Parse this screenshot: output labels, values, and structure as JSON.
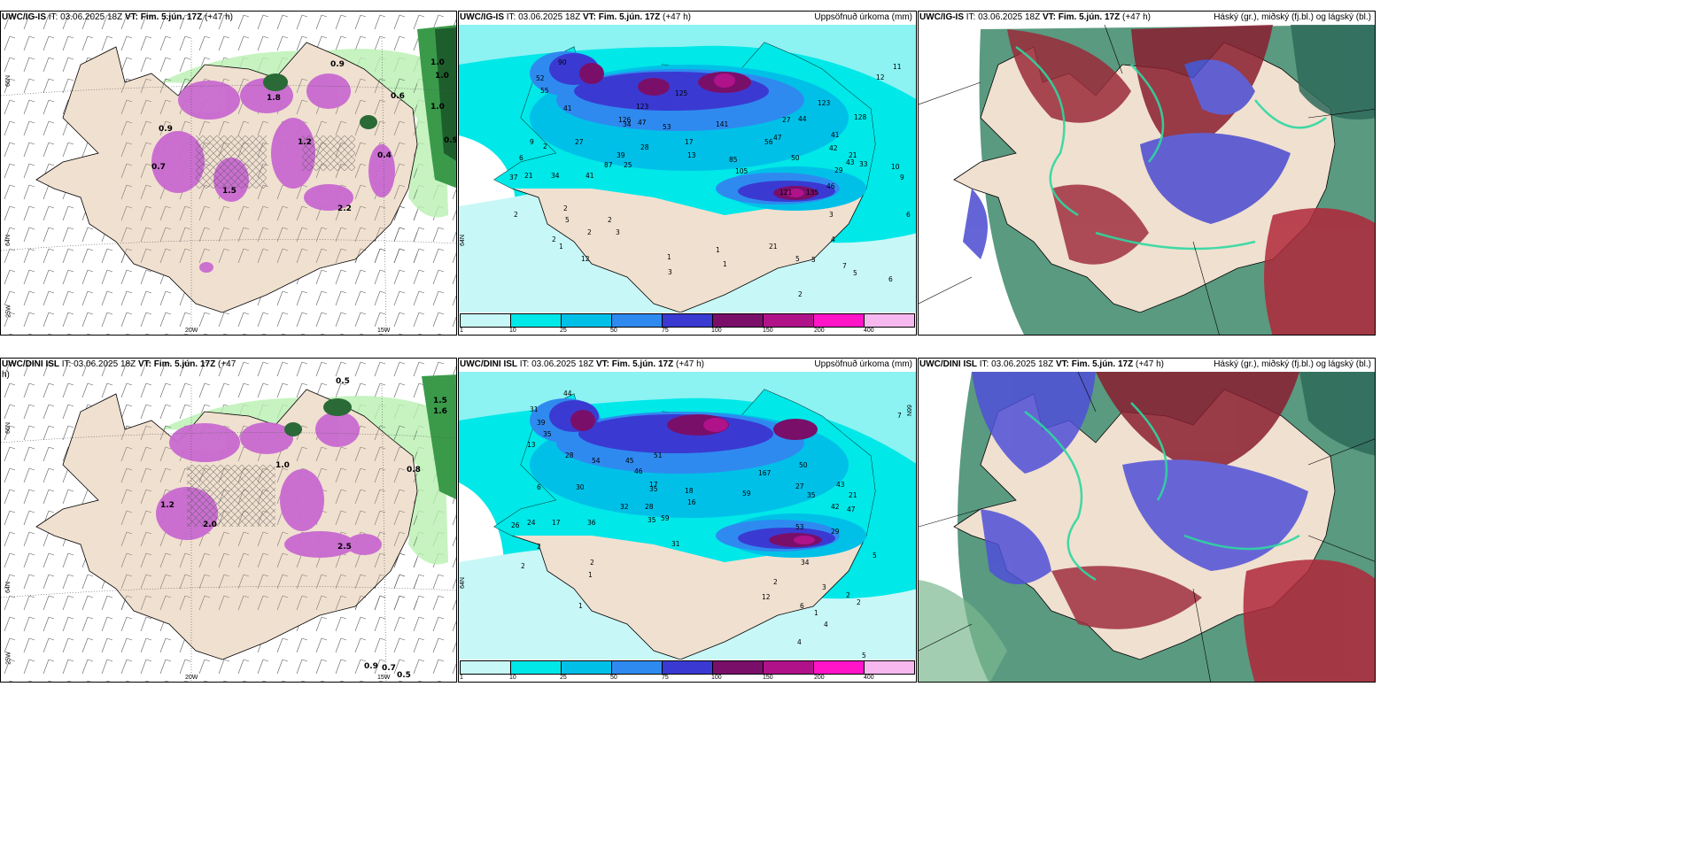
{
  "panels": {
    "p1": {
      "model": "UWC/IG-IS",
      "it_label": "IT:",
      "it": "03.06.2025 18Z",
      "vt_label": "VT:",
      "vt": "Fim. 5.jún. 17Z",
      "lead": "(+47 h)",
      "right": "",
      "lat1": "66N",
      "lat2": "64N",
      "lat3": "25W",
      "lon1": "20W",
      "lon2": "15W"
    },
    "p2": {
      "model": "UWC/IG-IS",
      "it_label": "IT:",
      "it": "03.06.2025 18Z",
      "vt_label": "VT:",
      "vt": "Fim. 5.jún. 17Z",
      "lead": "(+47 h)",
      "right": "Uppsöfnuð úrkoma (mm)",
      "lat2": "64N"
    },
    "p3": {
      "model": "UWC/IG-IS",
      "it_label": "IT:",
      "it": "03.06.2025 18Z",
      "vt_label": "VT:",
      "vt": "Fim. 5.jún. 17Z",
      "lead": "(+47 h)",
      "right": "Háský (gr.), miðský (fj.bl.) og lágský (bl.)"
    },
    "p4": {
      "model": "UWC/DINI ISL",
      "it_label": "IT:",
      "it": "03.06.2025 18Z",
      "vt_label": "VT:",
      "vt": "Fim. 5.jún. 17Z",
      "lead": "(+47",
      "lead2": "h)",
      "right": "",
      "lat1": "66N",
      "lat2": "64N",
      "lat3": "25W",
      "lon1": "20W",
      "lon2": "15W"
    },
    "p5": {
      "model": "UWC/DINI ISL",
      "it_label": "IT:",
      "it": "03.06.2025 18Z",
      "vt_label": "VT:",
      "vt": "Fim. 5.jún. 17Z",
      "lead": "(+47 h)",
      "right": "Uppsöfnuð úrkoma (mm)",
      "lat1": "66N",
      "lat2": "64N"
    },
    "p6": {
      "model": "UWC/DINI ISL",
      "it_label": "IT:",
      "it": "03.06.2025 18Z",
      "vt_label": "VT:",
      "vt": "Fim. 5.jún. 17Z",
      "lead": "(+47 h)",
      "right": "Háský (gr.), miðský (fj.bl.) og lágský (bl.)"
    }
  },
  "colorbar": {
    "ticks": [
      "1",
      "10",
      "25",
      "50",
      "75",
      "100",
      "150",
      "200",
      "400"
    ],
    "colors": [
      "#c8f7f7",
      "#00e8e8",
      "#00c0e8",
      "#2f8af0",
      "#3a3ad2",
      "#7a0f6a",
      "#b0128a",
      "#ff14c8",
      "#f7b8f0"
    ]
  },
  "precip_labels_top": [
    "90",
    "52",
    "55",
    "41",
    "27",
    "6",
    "9",
    "2",
    "37",
    "21",
    "34",
    "41",
    "87",
    "39",
    "28",
    "25",
    "17",
    "13",
    "34",
    "53",
    "47",
    "125",
    "126",
    "123",
    "141",
    "105",
    "135",
    "121",
    "123",
    "128",
    "27",
    "44",
    "41",
    "42",
    "56",
    "47",
    "85",
    "50",
    "43",
    "29",
    "46",
    "21",
    "33",
    "2",
    "2",
    "5",
    "2",
    "2",
    "3",
    "2",
    "1",
    "1",
    "1",
    "1",
    "3",
    "5",
    "5",
    "3",
    "4",
    "6",
    "2",
    "12",
    "21",
    "11",
    "12",
    "10",
    "9",
    "5",
    "7",
    "6"
  ],
  "precip_labels_bottom": [
    "44",
    "31",
    "39",
    "35",
    "13",
    "28",
    "6",
    "30",
    "26",
    "24",
    "17",
    "36",
    "54",
    "46",
    "51",
    "35",
    "17",
    "45",
    "32",
    "18",
    "16",
    "28",
    "59",
    "35",
    "31",
    "167",
    "50",
    "59",
    "27",
    "35",
    "42",
    "47",
    "53",
    "29",
    "43",
    "21",
    "34",
    "5",
    "2",
    "2",
    "2",
    "1",
    "2",
    "6",
    "1",
    "4",
    "4",
    "3",
    "2",
    "2",
    "5",
    "7",
    "12",
    "1"
  ],
  "wind_labels_top": [
    "0.9",
    "1.0",
    "1.0",
    "0.9",
    "0.6",
    "0.4",
    "1.0",
    "0.7",
    "0.9",
    "1.2",
    "2.2",
    "1.5",
    "1.8"
  ],
  "wind_labels_bottom": [
    "0.5",
    "1.5",
    "1.6",
    "0.8",
    "1.2",
    "2.0",
    "2.5",
    "1.0",
    "0.9",
    "0.7",
    "0.5"
  ]
}
